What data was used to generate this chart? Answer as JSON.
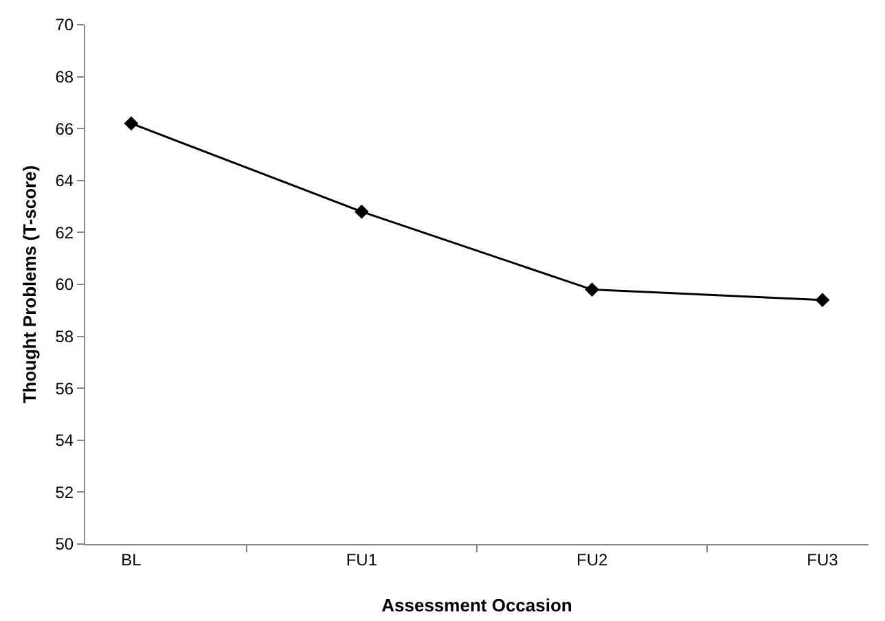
{
  "chart_data": {
    "type": "line",
    "xlabel": "Assessment Occasion",
    "ylabel": "Thought Problems (T-score)",
    "categories": [
      "BL",
      "FU1",
      "FU2",
      "FU3"
    ],
    "series": [
      {
        "color": "#000000",
        "values": [
          66.2,
          62.8,
          59.8,
          59.4
        ]
      }
    ],
    "ylim": [
      50,
      70
    ],
    "yticks": [
      50,
      52,
      54,
      56,
      58,
      60,
      62,
      64,
      66,
      68,
      70
    ],
    "grid": false,
    "marker": "diamond",
    "line_style": "solid"
  }
}
